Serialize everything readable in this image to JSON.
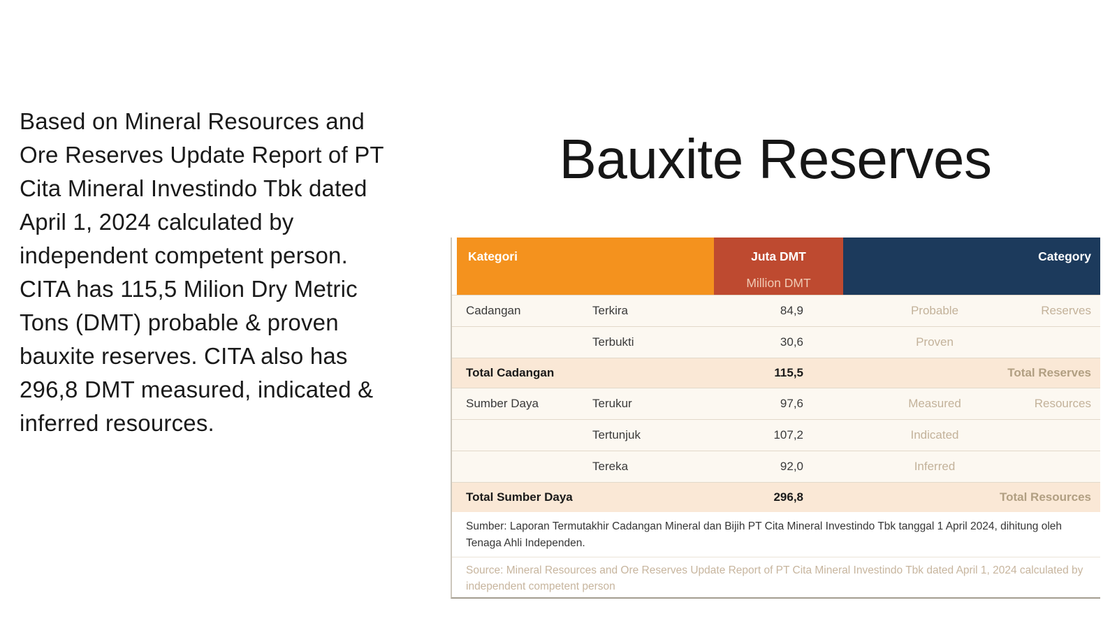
{
  "title": "Bauxite Reserves",
  "left_text": {
    "lines": [
      "Based on Mineral Resources and",
      "Ore Reserves Update Report of PT",
      "Cita Mineral Investindo Tbk dated",
      "April 1, 2024 calculated by",
      "independent competent person.",
      "CITA has 115,5 Milion Dry Metric",
      "Tons (DMT) probable & proven",
      "bauxite reserves. CITA also has",
      "296,8 DMT measured, indicated &",
      "inferred resources."
    ]
  },
  "table": {
    "header": {
      "kategori": "Kategori",
      "juta_dmt": "Juta DMT",
      "million_dmt": "Million DMT",
      "category": "Category"
    },
    "rows": [
      {
        "kategori": "Cadangan",
        "sub": "Terkira",
        "juta_dmt": "84,9",
        "category_sub": "Probable",
        "category": "Reserves"
      },
      {
        "kategori": "",
        "sub": "Terbukti",
        "juta_dmt": "30,6",
        "category_sub": "Proven",
        "category": ""
      },
      {
        "total_kategori": "Total Cadangan",
        "juta_dmt": "115,5",
        "total_category": "Total Reserves"
      },
      {
        "kategori": "Sumber Daya",
        "sub": "Terukur",
        "juta_dmt": "97,6",
        "category_sub": "Measured",
        "category": "Resources"
      },
      {
        "kategori": "",
        "sub": "Tertunjuk",
        "juta_dmt": "107,2",
        "category_sub": "Indicated",
        "category": ""
      },
      {
        "kategori": "",
        "sub": "Tereka",
        "juta_dmt": "92,0",
        "category_sub": "Inferred",
        "category": ""
      },
      {
        "total_kategori": "Total Sumber Daya",
        "juta_dmt": "296,8",
        "total_category": "Total Resources"
      }
    ],
    "footnote_id": {
      "lines": [
        "Sumber: Laporan Termutakhir Cadangan Mineral dan Bijih PT  Cita Mineral Investindo Tbk tanggal 1 April 2024, dihitung oleh",
        "Tenaga Ahli Independen."
      ]
    },
    "footnote_en": {
      "lines": [
        "Source: Mineral Resources and Ore Reserves Update Report of PT Cita Mineral Investindo Tbk dated April 1, 2024 calculated by",
        "independent competent person"
      ]
    },
    "colors": {
      "header_orange": "#f4921e",
      "header_red": "#be4a30",
      "header_navy": "#1c3a5c",
      "row_bg": "#fcf8f1",
      "total_row_bg": "#fae8d6",
      "english_text_tan": "#c3b29a",
      "total_english_tan": "#b19f82"
    }
  }
}
